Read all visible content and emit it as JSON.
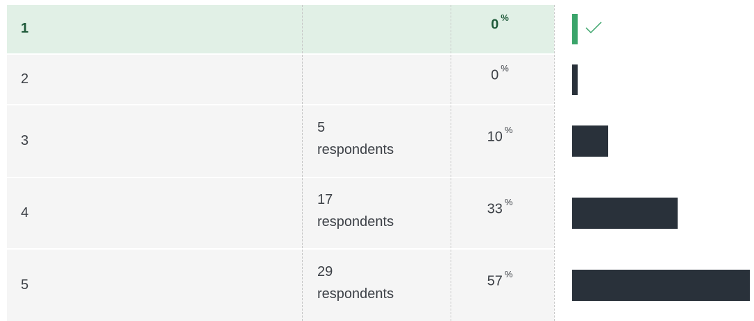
{
  "percent_unit": "%",
  "rows": [
    {
      "answer": "1",
      "percent": 0,
      "correct": true
    },
    {
      "answer": "2",
      "percent": 0
    },
    {
      "answer": "3",
      "count": 5,
      "count_label": "respondents",
      "percent": 10
    },
    {
      "answer": "4",
      "count": 17,
      "count_label": "respondents",
      "percent": 33
    },
    {
      "answer": "5",
      "count": 29,
      "count_label": "respondents",
      "percent": 57
    }
  ]
}
